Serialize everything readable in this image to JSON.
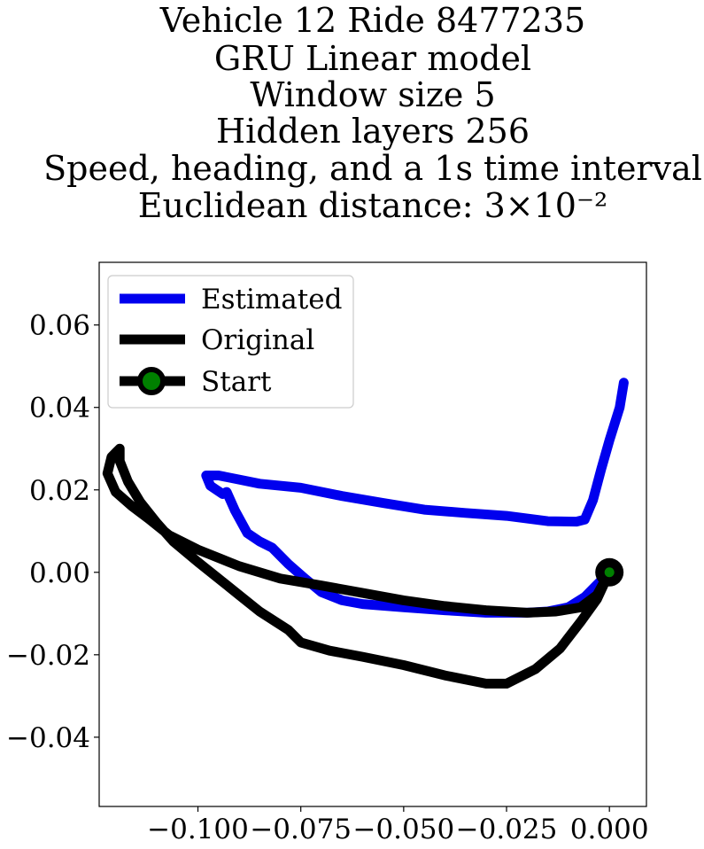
{
  "chart_data": {
    "type": "line",
    "title_lines": [
      "Vehicle 12 Ride 8477235",
      "GRU Linear model",
      "Window size 5",
      "Hidden layers 256",
      "Speed, heading, and a 1s time interval",
      "Euclidean distance: 3×10⁻²"
    ],
    "xlabel": "",
    "ylabel": "",
    "xlim": [
      -0.124,
      0.009
    ],
    "ylim": [
      -0.0568,
      0.0752
    ],
    "x_ticks": [
      -0.1,
      -0.075,
      -0.05,
      -0.025,
      0.0
    ],
    "x_tick_labels": [
      "−0.100",
      "−0.075",
      "−0.050",
      "−0.025",
      "0.000"
    ],
    "y_ticks": [
      -0.04,
      -0.02,
      0.0,
      0.02,
      0.04,
      0.06
    ],
    "y_tick_labels": [
      "−0.04",
      "−0.02",
      "0.00",
      "0.02",
      "0.04",
      "0.06"
    ],
    "grid": false,
    "legend_position": "top-left",
    "legend": [
      "Estimated",
      "Original",
      "Start"
    ],
    "series": [
      {
        "name": "Estimated",
        "color": "#0000ee",
        "points": [
          [
            0.0,
            0.0
          ],
          [
            -0.003,
            -0.003
          ],
          [
            -0.006,
            -0.006
          ],
          [
            -0.01,
            -0.0085
          ],
          [
            -0.015,
            -0.0095
          ],
          [
            -0.02,
            -0.0098
          ],
          [
            -0.03,
            -0.0098
          ],
          [
            -0.04,
            -0.0092
          ],
          [
            -0.05,
            -0.0085
          ],
          [
            -0.06,
            -0.0077
          ],
          [
            -0.065,
            -0.0068
          ],
          [
            -0.07,
            -0.0048
          ],
          [
            -0.074,
            -0.0015
          ],
          [
            -0.078,
            0.002
          ],
          [
            -0.082,
            0.006
          ],
          [
            -0.085,
            0.0075
          ],
          [
            -0.088,
            0.0095
          ],
          [
            -0.091,
            0.015
          ],
          [
            -0.093,
            0.0195
          ],
          [
            -0.094,
            0.019
          ],
          [
            -0.097,
            0.021
          ],
          [
            -0.098,
            0.0235
          ],
          [
            -0.095,
            0.0235
          ],
          [
            -0.09,
            0.0225
          ],
          [
            -0.085,
            0.0215
          ],
          [
            -0.075,
            0.0205
          ],
          [
            -0.065,
            0.0185
          ],
          [
            -0.055,
            0.0168
          ],
          [
            -0.045,
            0.0152
          ],
          [
            -0.035,
            0.0144
          ],
          [
            -0.025,
            0.0137
          ],
          [
            -0.015,
            0.0124
          ],
          [
            -0.008,
            0.0123
          ],
          [
            -0.006,
            0.0128
          ],
          [
            -0.004,
            0.0175
          ],
          [
            -0.002,
            0.025
          ],
          [
            0.0,
            0.032
          ],
          [
            0.0025,
            0.04
          ],
          [
            0.0035,
            0.046
          ]
        ]
      },
      {
        "name": "Original",
        "color": "#000000",
        "points": [
          [
            0.0,
            0.0
          ],
          [
            -0.003,
            -0.0055
          ],
          [
            -0.007,
            -0.0085
          ],
          [
            -0.013,
            -0.0095
          ],
          [
            -0.02,
            -0.0098
          ],
          [
            -0.03,
            -0.0092
          ],
          [
            -0.04,
            -0.0082
          ],
          [
            -0.05,
            -0.0068
          ],
          [
            -0.06,
            -0.005
          ],
          [
            -0.07,
            -0.0032
          ],
          [
            -0.08,
            -0.0015
          ],
          [
            -0.09,
            0.0015
          ],
          [
            -0.1,
            0.0055
          ],
          [
            -0.107,
            0.009
          ],
          [
            -0.112,
            0.013
          ],
          [
            -0.116,
            0.016
          ],
          [
            -0.12,
            0.0195
          ],
          [
            -0.122,
            0.024
          ],
          [
            -0.121,
            0.028
          ],
          [
            -0.119,
            0.03
          ],
          [
            -0.119,
            0.027
          ],
          [
            -0.117,
            0.022
          ],
          [
            -0.114,
            0.017
          ],
          [
            -0.11,
            0.012
          ],
          [
            -0.106,
            0.0075
          ],
          [
            -0.1,
            0.0025
          ],
          [
            -0.095,
            -0.0015
          ],
          [
            -0.09,
            -0.0055
          ],
          [
            -0.085,
            -0.0095
          ],
          [
            -0.078,
            -0.014
          ],
          [
            -0.075,
            -0.017
          ],
          [
            -0.068,
            -0.019
          ],
          [
            -0.06,
            -0.0205
          ],
          [
            -0.05,
            -0.0225
          ],
          [
            -0.04,
            -0.025
          ],
          [
            -0.03,
            -0.027
          ],
          [
            -0.025,
            -0.027
          ],
          [
            -0.018,
            -0.0235
          ],
          [
            -0.012,
            -0.0185
          ],
          [
            -0.007,
            -0.012
          ],
          [
            -0.003,
            -0.0065
          ],
          [
            0.0,
            0.0
          ]
        ]
      }
    ],
    "start_point": {
      "name": "Start",
      "x": 0.0,
      "y": 0.0,
      "marker_color": "#008000",
      "edge_color": "#000000"
    }
  }
}
